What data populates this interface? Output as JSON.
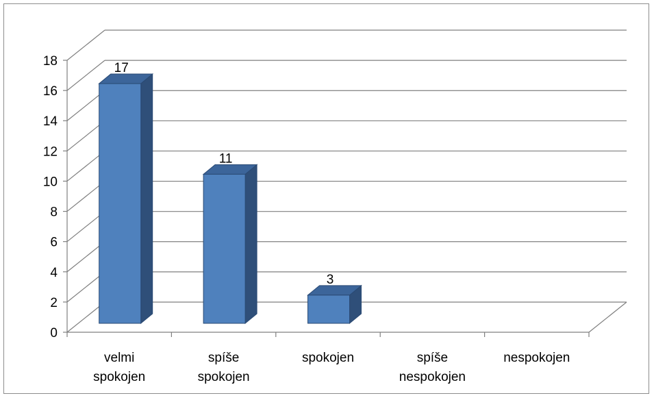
{
  "chart_data": {
    "type": "bar",
    "style": "3d-column",
    "categories": [
      [
        "velmi",
        "spokojen"
      ],
      [
        "spíše",
        "spokojen"
      ],
      [
        "spokojen"
      ],
      [
        "spíše",
        "nespokojen"
      ],
      [
        "nespokojen"
      ]
    ],
    "values": [
      17,
      11,
      3,
      null,
      null
    ],
    "data_labels": [
      "17",
      "11",
      "3",
      "",
      ""
    ],
    "y_ticks": [
      "0",
      "2",
      "4",
      "6",
      "8",
      "10",
      "12",
      "14",
      "16",
      "18"
    ],
    "ylim": [
      0,
      18
    ],
    "title": "",
    "xlabel": "",
    "ylabel": "",
    "grid": true,
    "legend": "none",
    "colors": {
      "bar_front": "#4f81bd",
      "bar_side": "#2f4f79",
      "bar_top": "#3c659a",
      "bar_edge": "#2a4a74",
      "grid": "#7f7f7f",
      "frame": "#8c8c8c"
    }
  }
}
